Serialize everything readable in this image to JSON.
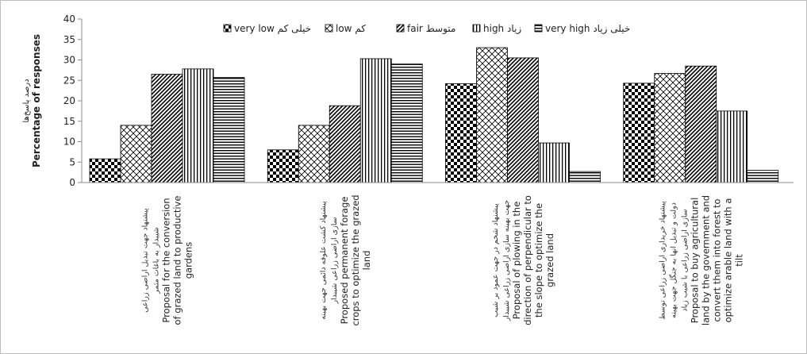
{
  "chart_data": {
    "type": "bar",
    "title": "",
    "ylabel": "Percentage of responses",
    "ylabel_fa": "درصد پاسخ‌ها",
    "ylim": [
      0,
      40
    ],
    "yticks": [
      0,
      5,
      10,
      15,
      20,
      25,
      30,
      35,
      40
    ],
    "grid": false,
    "legend_position": "top",
    "categories": [
      {
        "fa": [
          "پیشنهاد جهت تبدیل اراضی زراعی",
          "شیبدار به باغات مثمر"
        ],
        "en": [
          "Proposal for the conversion",
          "of grazed land to productive",
          "gardens"
        ]
      },
      {
        "fa": [
          "پیشنهاد کشت علوفه دائمی جهت بهینه",
          "سازی اراضی زراعی شیبدار"
        ],
        "en": [
          "Proposed permanent forage",
          "crops to optimize the grazed",
          "land"
        ]
      },
      {
        "fa": [
          "پیشنهاد شخم در جهت عمود بر شیب",
          "جهت بهینه سازی اراضی زراعی شیبدار"
        ],
        "en": [
          "Proposal of plowing in the",
          "direction of perpendicular to",
          "the slope to optimize the",
          "grazed land"
        ]
      },
      {
        "fa": [
          "پیشنهاد خریداری اراضی زراعی توسط",
          "دولت و تبدیل انها به جنگل جهت بهینه",
          "سازی اراضی زراعی با شیب زیاد"
        ],
        "en": [
          "Proposal to buy agricultural",
          "land by the government and",
          "convert them into forest to",
          "optimize arable land with a",
          "tilt"
        ]
      }
    ],
    "series": [
      {
        "name": "very low",
        "name_fa": "خیلی کم",
        "pattern": "checker",
        "values": [
          5.8,
          8.0,
          24.2,
          24.3
        ]
      },
      {
        "name": "low",
        "name_fa": "کم",
        "pattern": "diamond",
        "values": [
          14.0,
          14.0,
          33.0,
          26.7
        ]
      },
      {
        "name": "fair",
        "name_fa": "متوسط",
        "pattern": "diagonal",
        "values": [
          26.5,
          18.8,
          30.5,
          28.5
        ]
      },
      {
        "name": "high",
        "name_fa": "زیاد",
        "pattern": "vertical",
        "values": [
          27.8,
          30.3,
          9.7,
          17.5
        ]
      },
      {
        "name": "very high",
        "name_fa": "خیلی زیاد",
        "pattern": "horizontal",
        "values": [
          25.7,
          29.0,
          2.7,
          3.0
        ]
      }
    ]
  }
}
